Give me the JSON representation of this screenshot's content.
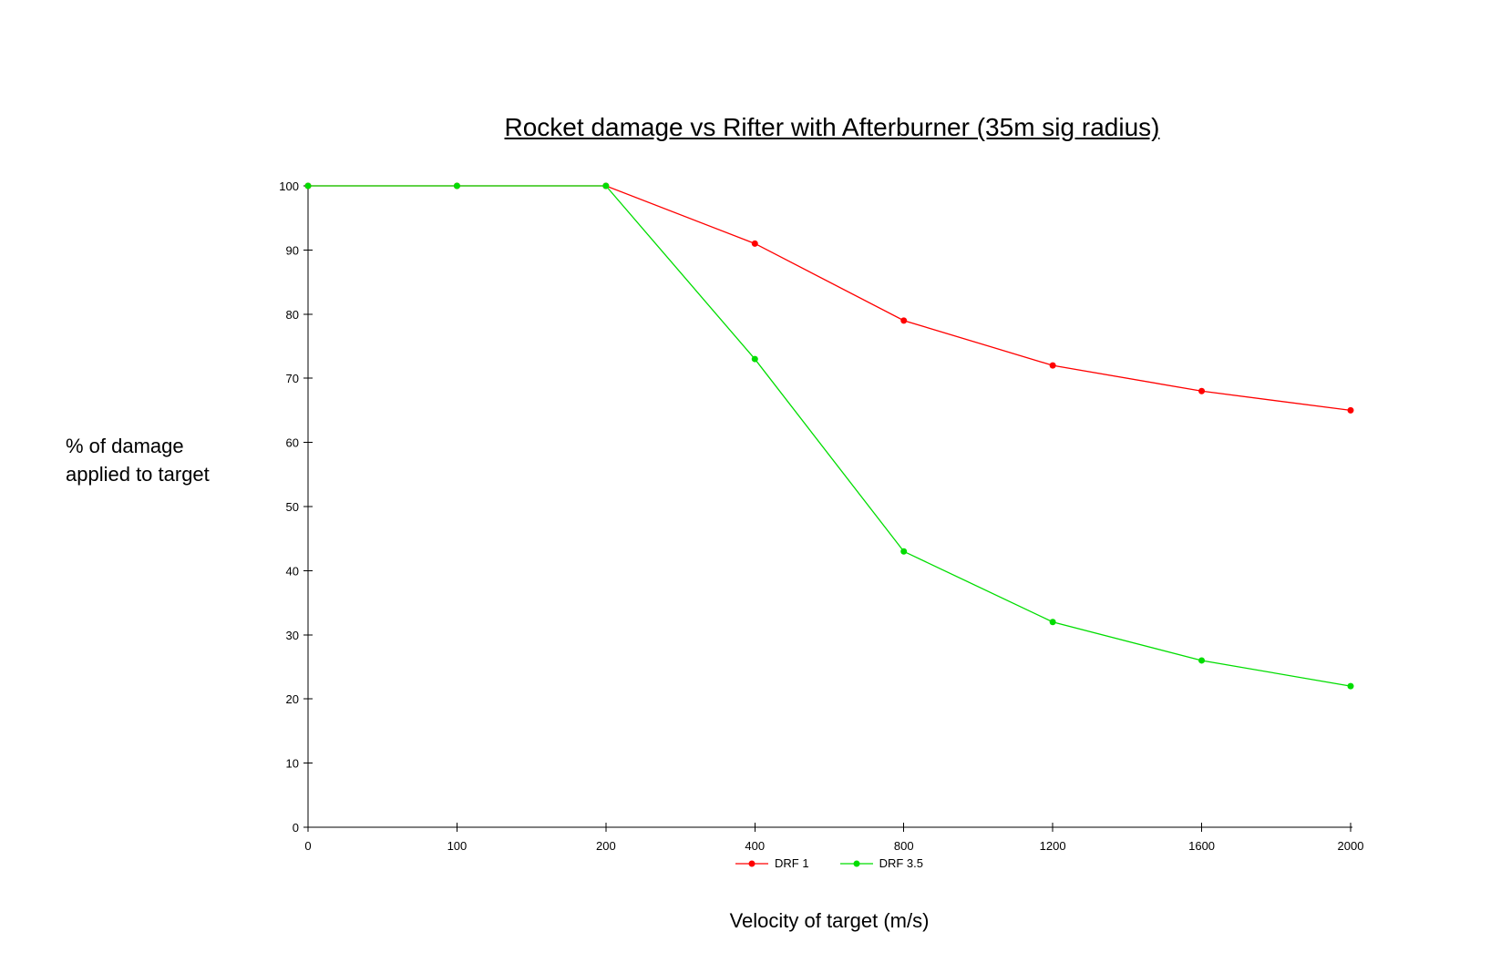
{
  "chart_data": {
    "type": "line",
    "title": "Rocket damage vs Rifter with Afterburner (35m sig radius)",
    "xlabel": "Velocity of target (m/s)",
    "ylabel_lines": [
      "% of damage",
      "applied to target"
    ],
    "categories": [
      0,
      100,
      200,
      400,
      800,
      1200,
      1600,
      2000
    ],
    "x_tick_labels": [
      "0",
      "100",
      "200",
      "400",
      "800",
      "1200",
      "1600",
      "2000"
    ],
    "y_ticks": [
      0,
      10,
      20,
      30,
      40,
      50,
      60,
      70,
      80,
      90,
      100
    ],
    "ylim": [
      0,
      100
    ],
    "grid": false,
    "legend_position": "bottom-center",
    "axis_color": "#000000",
    "background_color": "#ffffff",
    "series": [
      {
        "name": "DRF 1",
        "color": "#ff0000",
        "values": [
          100,
          100,
          100,
          91,
          79,
          72,
          68,
          65
        ]
      },
      {
        "name": "DRF 3.5",
        "color": "#00dd00",
        "values": [
          100,
          100,
          100,
          73,
          43,
          32,
          26,
          22
        ]
      }
    ]
  }
}
